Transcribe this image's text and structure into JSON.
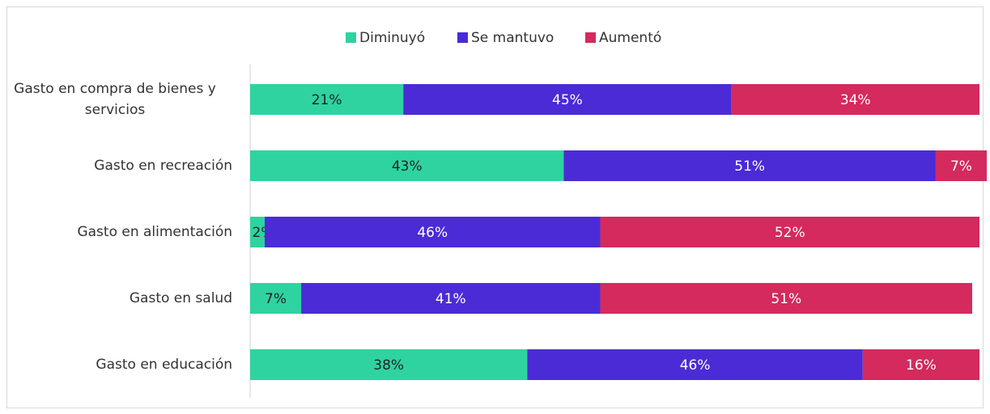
{
  "chart_data": {
    "type": "stacked_bar_horizontal",
    "categories": [
      "Gasto en compra de bienes y servicios",
      "Gasto en recreación",
      "Gasto en alimentación",
      "Gasto en salud",
      "Gasto en educación"
    ],
    "series": [
      {
        "name": "Diminuyó",
        "color": "#2ed3a0",
        "values": [
          21,
          43,
          2,
          7,
          38
        ],
        "value_labels": [
          "21%",
          "43%",
          "2%",
          "7%",
          "38%"
        ]
      },
      {
        "name": "Se mantuvo",
        "color": "#4b2bd6",
        "values": [
          45,
          51,
          46,
          41,
          46
        ],
        "value_labels": [
          "45%",
          "51%",
          "46%",
          "41%",
          "46%"
        ]
      },
      {
        "name": "Aumentó",
        "color": "#d42a5e",
        "values": [
          34,
          7,
          52,
          51,
          16
        ],
        "value_labels": [
          "34%",
          "7%",
          "52%",
          "51%",
          "16%"
        ]
      }
    ],
    "xlim": [
      0,
      100
    ],
    "legend": "top"
  }
}
